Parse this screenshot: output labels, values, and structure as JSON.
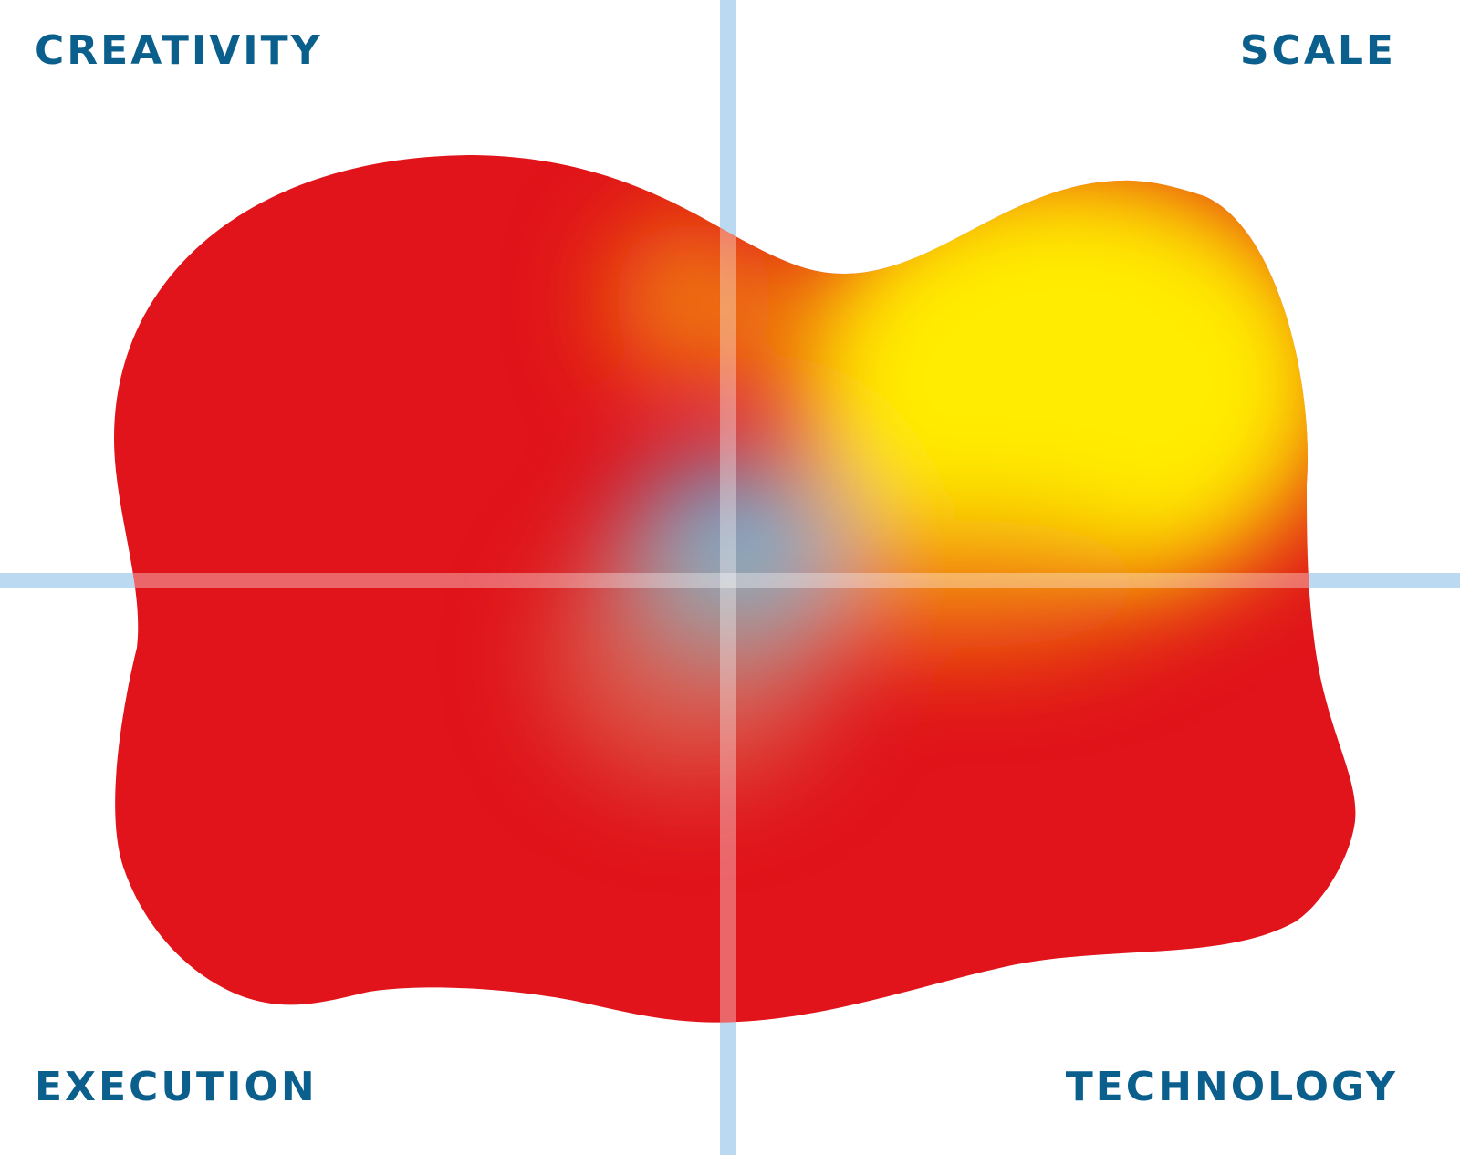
{
  "labels": {
    "top_left": "CREATIVITY",
    "top_right": "SCALE",
    "bottom_left": "EXECUTION",
    "bottom_right": "TECHNOLOGY"
  },
  "colors": {
    "label": "#0a5f8c",
    "axis": "#bcd9f2",
    "red": "#e0141a",
    "orange": "#f08010",
    "yellow": "#ffec00",
    "center_blue": "#4dbfee"
  }
}
